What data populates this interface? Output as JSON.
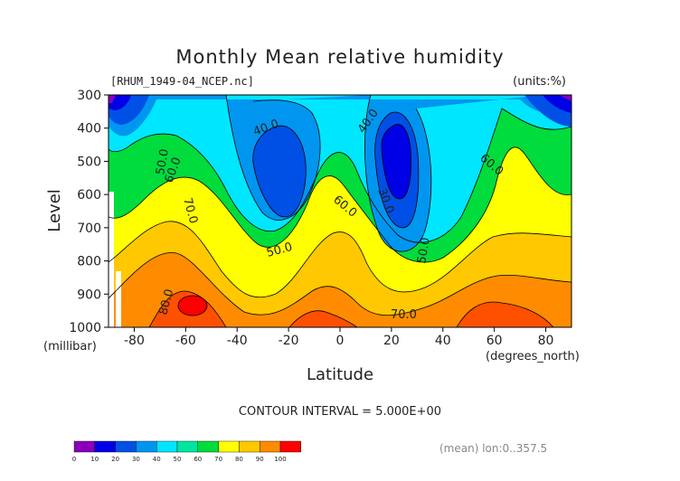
{
  "chart_data": {
    "type": "contour",
    "title": "Monthly Mean relative humidity",
    "file_label": "[RHUM_1949-04_NCEP.nc]",
    "units_label": "(units:%)",
    "xlabel": "Latitude",
    "x_unit_label": "(degrees_north)",
    "ylabel": "Level",
    "y_unit_label": "(millibar)",
    "xlim": [
      -90,
      90
    ],
    "ylim": [
      1000,
      300
    ],
    "x_ticks": [
      -80,
      -60,
      -40,
      -20,
      0,
      20,
      40,
      60,
      80
    ],
    "y_ticks": [
      300,
      400,
      500,
      600,
      700,
      800,
      900,
      1000
    ],
    "contour_interval_text": "CONTOUR INTERVAL = 5.000E+00",
    "mean_text": "(mean) lon:0..357.5",
    "contour_labels": [
      "40.0",
      "40.0",
      "50.0",
      "60.0",
      "30.0",
      "60.0",
      "70.0",
      "60.0",
      "50.0",
      "50.0",
      "70.0",
      "80.0",
      "60.0"
    ],
    "colorbar": {
      "ticks": [
        "0",
        "10",
        "20",
        "30",
        "40",
        "50",
        "60",
        "70",
        "80",
        "90",
        "100"
      ],
      "colors": [
        "#8a00b8",
        "#0000e6",
        "#0050e6",
        "#0096f0",
        "#00e6ff",
        "#00e6a0",
        "#00dc3c",
        "#ffff00",
        "#ffc800",
        "#ff8c00",
        "#ff0000"
      ]
    },
    "field_center_values": {
      "south_polar_upper": 15,
      "southern_subtropics_midtroposphere": 38,
      "equator_midtroposphere": 48,
      "northern_subtropics_midtroposphere": 28,
      "north_polar_upper": 18,
      "southern_boundary_layer_max": 95,
      "northern_boundary_layer": 85
    }
  }
}
